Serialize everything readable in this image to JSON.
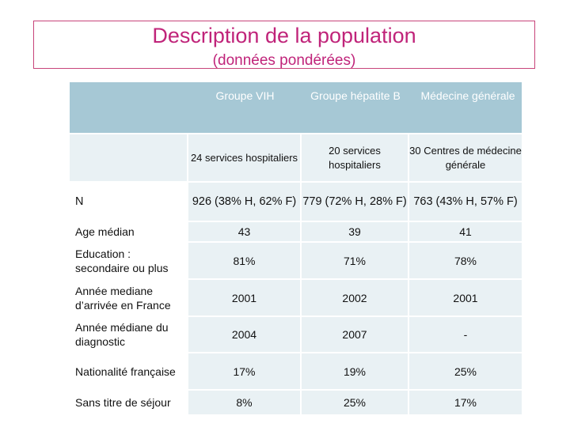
{
  "title": "Description de la population",
  "subtitle": "(données pondérées)",
  "table": {
    "headers": [
      "",
      "Groupe VIH",
      "Groupe hépatite B",
      "Médecine générale"
    ],
    "subheader": [
      "",
      "24 services hospitaliers",
      "20 services hospitaliers",
      "30  Centres de médecine générale"
    ],
    "rows": [
      {
        "label": "N",
        "values": [
          "926 (38% H, 62% F)",
          "779 (72% H, 28% F)",
          "763 (43% H, 57% F)"
        ]
      },
      {
        "label": "Age médian",
        "values": [
          "43",
          "39",
          "41"
        ]
      },
      {
        "label": "Education : secondaire ou plus",
        "values": [
          "81%",
          "71%",
          "78%"
        ]
      },
      {
        "label": "Année mediane d’arrivée en France",
        "values": [
          "2001",
          "2002",
          "2001"
        ]
      },
      {
        "label": "Année médiane du diagnostic",
        "values": [
          "2004",
          "2007",
          "-"
        ]
      },
      {
        "label": "Nationalité française",
        "values": [
          "17%",
          "19%",
          "25%"
        ]
      },
      {
        "label": "Sans titre de séjour",
        "values": [
          "8%",
          "25%",
          "17%"
        ]
      }
    ]
  },
  "colors": {
    "title": "#c0247a",
    "header": "#a6c8d5",
    "band": "#e9f1f4"
  }
}
